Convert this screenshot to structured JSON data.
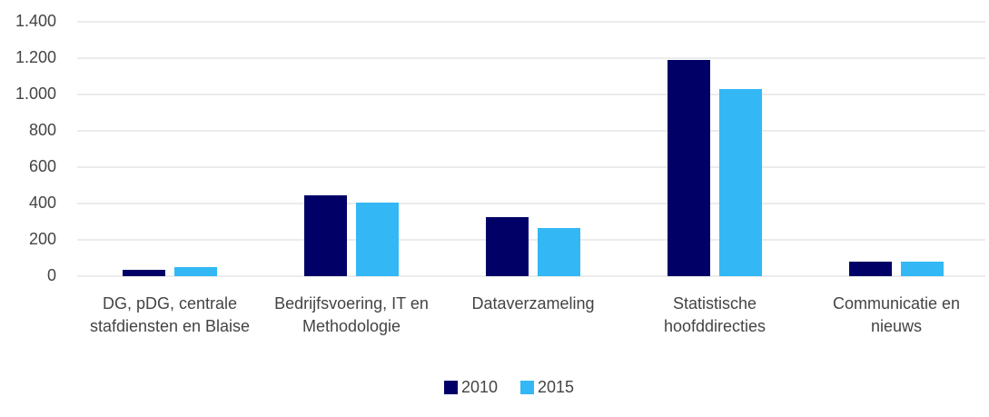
{
  "chart_data": {
    "type": "bar",
    "categories": [
      "DG, pDG, centrale stafdiensten en Blaise",
      "Bedrijfsvoering, IT en Methodologie",
      "Dataverzameling",
      "Statistische hoofddirecties",
      "Communicatie en nieuws"
    ],
    "series": [
      {
        "name": "2010",
        "color": "#000066",
        "values": [
          35,
          445,
          325,
          1190,
          80
        ]
      },
      {
        "name": "2015",
        "color": "#33b8f5",
        "values": [
          50,
          405,
          265,
          1030,
          80
        ]
      }
    ],
    "ylim": [
      0,
      1400
    ],
    "yticks": [
      0,
      200,
      400,
      600,
      800,
      {
        "value": 1000,
        "label": "1.000"
      },
      {
        "value": 1200,
        "label": "1.200"
      },
      {
        "value": 1400,
        "label": "1.400"
      }
    ],
    "grid": true,
    "legend": "bottom"
  }
}
